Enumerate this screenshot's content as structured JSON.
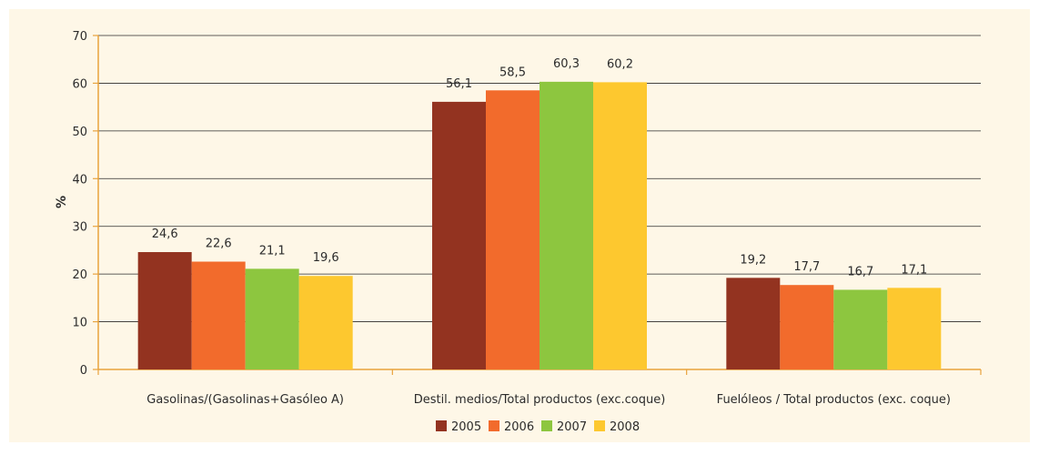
{
  "chart_data": {
    "type": "bar",
    "ylabel": "%",
    "ylim": [
      0,
      70
    ],
    "yticks": [
      0,
      10,
      20,
      30,
      40,
      50,
      60,
      70
    ],
    "grid": true,
    "legend_position": "bottom",
    "categories": [
      "Gasolinas/(Gasolinas+Gasóleo A)",
      "Destil. medios/Total productos (exc.coque)",
      "Fuelóleos / Total productos (exc. coque)"
    ],
    "series": [
      {
        "name": "2005",
        "color": "#933320",
        "values": [
          24.6,
          56.1,
          19.2
        ],
        "labels": [
          "24,6",
          "56,1",
          "19,2"
        ]
      },
      {
        "name": "2006",
        "color": "#F26B2C",
        "values": [
          22.6,
          58.5,
          17.7
        ],
        "labels": [
          "22,6",
          "58,5",
          "17,7"
        ]
      },
      {
        "name": "2007",
        "color": "#8DC63F",
        "values": [
          21.1,
          60.3,
          16.7
        ],
        "labels": [
          "21,1",
          "60,3",
          "16,7"
        ]
      },
      {
        "name": "2008",
        "color": "#FDC82F",
        "values": [
          19.6,
          60.2,
          17.1
        ],
        "labels": [
          "19,6",
          "60,2",
          "17,1"
        ]
      }
    ],
    "colors": {
      "background": "#FEF7E7",
      "grid": "#2b2b2b",
      "axis": "#E8A33D"
    }
  }
}
